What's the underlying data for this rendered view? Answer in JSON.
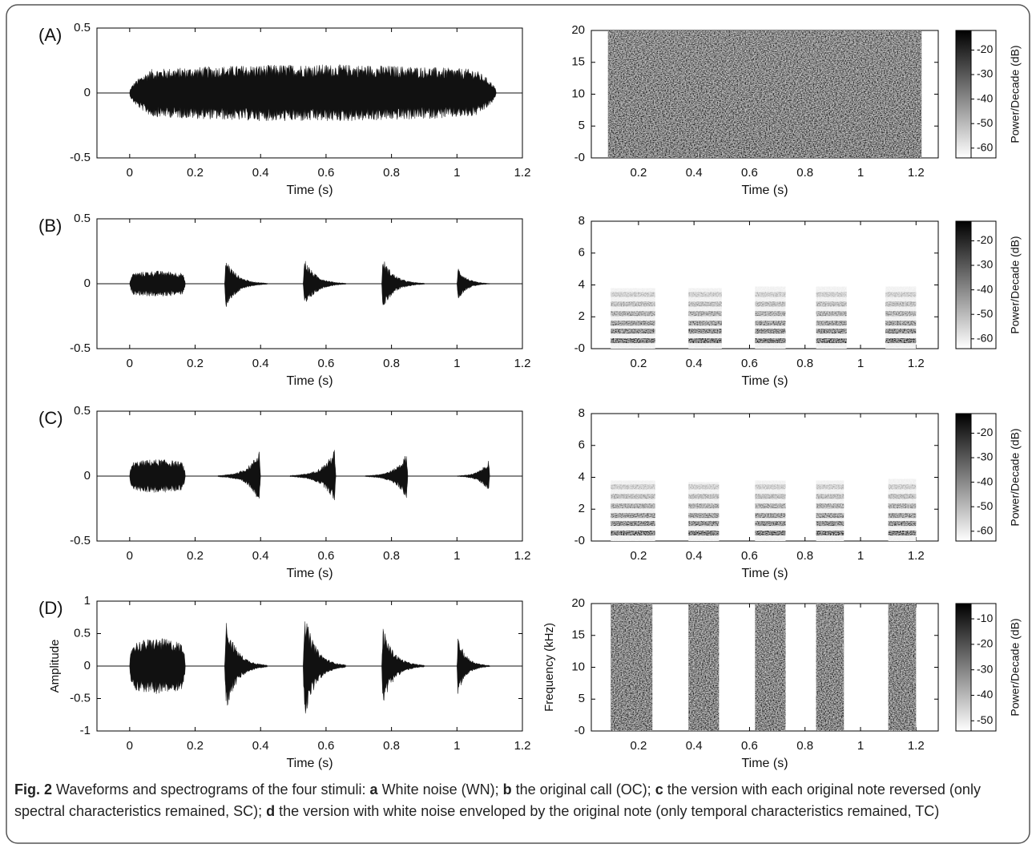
{
  "figure": {
    "panels": [
      {
        "label": "(A)",
        "waveform": {
          "xlabel": "Time (s)",
          "xlim": [
            -0.1,
            1.2
          ],
          "xticks": [
            0,
            0.2,
            0.4,
            0.6,
            0.8,
            1,
            1.2
          ],
          "ylim": [
            -0.5,
            0.5
          ],
          "yticks": [
            -0.5,
            0,
            0.5
          ],
          "notes": [
            {
              "onset": 0,
              "offset": 1.12,
              "peak": 0.22,
              "shape": "flat"
            }
          ]
        },
        "spectrogram": {
          "xlabel": "Time (s)",
          "xlim": [
            0.03,
            1.28
          ],
          "xticks": [
            0.2,
            0.4,
            0.6,
            0.8,
            1,
            1.2
          ],
          "ylim": [
            0,
            20
          ],
          "yticks": [
            {
              "value": 0,
              "label": "-0"
            },
            5,
            10,
            15,
            20
          ],
          "blocks": [
            {
              "onset": 0.09,
              "offset": 1.22,
              "fmax": 20
            }
          ],
          "harmonics": null
        },
        "colorbar": {
          "label": "Power/Decade (dB)",
          "lim": [
            -64,
            -12
          ],
          "ticks": [
            -60,
            -50,
            -40,
            -30,
            -20
          ]
        }
      },
      {
        "label": "(B)",
        "waveform": {
          "xlabel": "Time (s)",
          "xlim": [
            -0.1,
            1.2
          ],
          "xticks": [
            0,
            0.2,
            0.4,
            0.6,
            0.8,
            1,
            1.2
          ],
          "ylim": [
            -0.5,
            0.5
          ],
          "yticks": [
            -0.5,
            0,
            0.5
          ],
          "notes": [
            {
              "onset": 0,
              "offset": 0.17,
              "peak": 0.1,
              "shape": "flat"
            },
            {
              "onset": 0.29,
              "offset": 0.42,
              "peak": 0.2,
              "shape": "decay"
            },
            {
              "onset": 0.53,
              "offset": 0.66,
              "peak": 0.2,
              "shape": "decay"
            },
            {
              "onset": 0.77,
              "offset": 0.9,
              "peak": 0.2,
              "shape": "decay"
            },
            {
              "onset": 1.0,
              "offset": 1.1,
              "peak": 0.13,
              "shape": "decay"
            }
          ]
        },
        "spectrogram": {
          "xlabel": "Time (s)",
          "xlim": [
            0.03,
            1.28
          ],
          "xticks": [
            0.2,
            0.4,
            0.6,
            0.8,
            1,
            1.2
          ],
          "ylim": [
            0,
            8
          ],
          "yticks": [
            {
              "value": 0,
              "label": "-0"
            },
            2,
            4,
            6,
            8
          ],
          "blocks": [
            {
              "onset": 0.1,
              "offset": 0.26,
              "fmax": 3.8
            },
            {
              "onset": 0.38,
              "offset": 0.5,
              "fmax": 3.8
            },
            {
              "onset": 0.62,
              "offset": 0.73,
              "fmax": 3.9
            },
            {
              "onset": 0.84,
              "offset": 0.95,
              "fmax": 3.9
            },
            {
              "onset": 1.09,
              "offset": 1.2,
              "fmax": 3.9
            }
          ],
          "harmonics": [
            0.5,
            1.1,
            1.6,
            2.2,
            2.8,
            3.4
          ]
        },
        "colorbar": {
          "label": "Power/Decade (dB)",
          "lim": [
            -64,
            -12
          ],
          "ticks": [
            -60,
            -50,
            -40,
            -30,
            -20
          ]
        }
      },
      {
        "label": "(C)",
        "waveform": {
          "xlabel": "Time (s)",
          "xlim": [
            -0.1,
            1.2
          ],
          "xticks": [
            0,
            0.2,
            0.4,
            0.6,
            0.8,
            1,
            1.2
          ],
          "ylim": [
            -0.5,
            0.5
          ],
          "yticks": [
            -0.5,
            0,
            0.5
          ],
          "notes": [
            {
              "onset": 0,
              "offset": 0.17,
              "peak": 0.13,
              "shape": "flat"
            },
            {
              "onset": 0.27,
              "offset": 0.4,
              "peak": 0.21,
              "shape": "rise"
            },
            {
              "onset": 0.49,
              "offset": 0.63,
              "peak": 0.21,
              "shape": "rise"
            },
            {
              "onset": 0.72,
              "offset": 0.85,
              "peak": 0.18,
              "shape": "rise"
            },
            {
              "onset": 1.0,
              "offset": 1.1,
              "peak": 0.13,
              "shape": "rise"
            }
          ]
        },
        "spectrogram": {
          "xlabel": "Time (s)",
          "xlim": [
            0.03,
            1.28
          ],
          "xticks": [
            0.2,
            0.4,
            0.6,
            0.8,
            1,
            1.2
          ],
          "ylim": [
            0,
            8
          ],
          "yticks": [
            {
              "value": 0,
              "label": "-0"
            },
            2,
            4,
            6,
            8
          ],
          "blocks": [
            {
              "onset": 0.1,
              "offset": 0.26,
              "fmax": 3.8
            },
            {
              "onset": 0.38,
              "offset": 0.49,
              "fmax": 3.7
            },
            {
              "onset": 0.62,
              "offset": 0.73,
              "fmax": 3.8
            },
            {
              "onset": 0.84,
              "offset": 0.94,
              "fmax": 3.8
            },
            {
              "onset": 1.1,
              "offset": 1.2,
              "fmax": 3.9
            }
          ],
          "harmonics": [
            0.5,
            1.1,
            1.6,
            2.2,
            2.8,
            3.4
          ]
        },
        "colorbar": {
          "label": "Power/Decade (dB)",
          "lim": [
            -64,
            -12
          ],
          "ticks": [
            -60,
            -50,
            -40,
            -30,
            -20
          ]
        }
      },
      {
        "label": "(D)",
        "waveform": {
          "xlabel": "Time (s)",
          "ylabel": "Amplitude",
          "xlim": [
            -0.1,
            1.2
          ],
          "xticks": [
            0,
            0.2,
            0.4,
            0.6,
            0.8,
            1,
            1.2
          ],
          "ylim": [
            -1,
            1
          ],
          "yticks": [
            -1,
            -0.5,
            0,
            0.5,
            1
          ],
          "notes": [
            {
              "onset": 0,
              "offset": 0.17,
              "peak": 0.43,
              "shape": "flat"
            },
            {
              "onset": 0.29,
              "offset": 0.42,
              "peak": 0.72,
              "shape": "decay"
            },
            {
              "onset": 0.53,
              "offset": 0.66,
              "peak": 0.85,
              "shape": "decay"
            },
            {
              "onset": 0.77,
              "offset": 0.9,
              "peak": 0.6,
              "shape": "decay"
            },
            {
              "onset": 1.0,
              "offset": 1.1,
              "peak": 0.45,
              "shape": "decay"
            }
          ]
        },
        "spectrogram": {
          "xlabel": "Time (s)",
          "ylabel": "Frequency (kHz)",
          "xlim": [
            0.03,
            1.28
          ],
          "xticks": [
            0.2,
            0.4,
            0.6,
            0.8,
            1,
            1.2
          ],
          "ylim": [
            0,
            20
          ],
          "yticks": [
            {
              "value": 0,
              "label": "-0"
            },
            5,
            10,
            15,
            20
          ],
          "blocks": [
            {
              "onset": 0.1,
              "offset": 0.25,
              "fmax": 20
            },
            {
              "onset": 0.38,
              "offset": 0.49,
              "fmax": 20
            },
            {
              "onset": 0.62,
              "offset": 0.73,
              "fmax": 20
            },
            {
              "onset": 0.84,
              "offset": 0.94,
              "fmax": 20
            },
            {
              "onset": 1.1,
              "offset": 1.2,
              "fmax": 20
            }
          ],
          "harmonics": null
        },
        "colorbar": {
          "label": "Power/Decade (dB)",
          "lim": [
            -54,
            -4
          ],
          "ticks": [
            -50,
            -40,
            -30,
            -20,
            -10
          ]
        }
      }
    ]
  },
  "caption": {
    "label": "Fig. 2",
    "intro": "Waveforms and spectrograms of the four stimuli:",
    "items": [
      {
        "key": "a",
        "text": "White noise (WN);"
      },
      {
        "key": "b",
        "text": "the original call (OC);"
      },
      {
        "key": "c",
        "text": "the version with each original note reversed (only spectral characteristics remained, SC);"
      },
      {
        "key": "d",
        "text": "the version with white noise enveloped by the original note (only temporal characteristics remained, TC)"
      }
    ]
  }
}
